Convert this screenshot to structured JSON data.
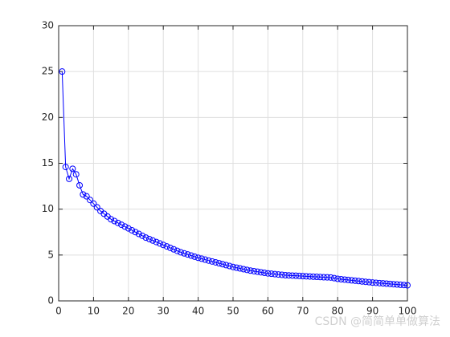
{
  "chart_data": {
    "type": "line",
    "x": [
      1,
      2,
      3,
      4,
      5,
      6,
      7,
      8,
      9,
      10,
      11,
      12,
      13,
      14,
      15,
      16,
      17,
      18,
      19,
      20,
      21,
      22,
      23,
      24,
      25,
      26,
      27,
      28,
      29,
      30,
      31,
      32,
      33,
      34,
      35,
      36,
      37,
      38,
      39,
      40,
      41,
      42,
      43,
      44,
      45,
      46,
      47,
      48,
      49,
      50,
      51,
      52,
      53,
      54,
      55,
      56,
      57,
      58,
      59,
      60,
      61,
      62,
      63,
      64,
      65,
      66,
      67,
      68,
      69,
      70,
      71,
      72,
      73,
      74,
      75,
      76,
      77,
      78,
      79,
      80,
      81,
      82,
      83,
      84,
      85,
      86,
      87,
      88,
      89,
      90,
      91,
      92,
      93,
      94,
      95,
      96,
      97,
      98,
      99,
      100
    ],
    "series": [
      {
        "color": "#0000ff",
        "marker": "circle",
        "values": [
          25,
          14.6,
          13.3,
          14.4,
          13.8,
          12.6,
          11.6,
          11.4,
          11.0,
          10.6,
          10.2,
          9.8,
          9.5,
          9.2,
          8.9,
          8.7,
          8.5,
          8.3,
          8.1,
          7.9,
          7.7,
          7.5,
          7.3,
          7.1,
          6.9,
          6.74,
          6.58,
          6.42,
          6.26,
          6.1,
          5.94,
          5.78,
          5.62,
          5.46,
          5.3,
          5.18,
          5.06,
          4.94,
          4.82,
          4.7,
          4.6,
          4.5,
          4.4,
          4.3,
          4.2,
          4.1,
          4.0,
          3.9,
          3.8,
          3.7,
          3.62,
          3.54,
          3.46,
          3.38,
          3.3,
          3.24,
          3.18,
          3.12,
          3.06,
          3.0,
          2.96,
          2.92,
          2.88,
          2.84,
          2.8,
          2.78,
          2.76,
          2.74,
          2.72,
          2.7,
          2.68,
          2.66,
          2.64,
          2.62,
          2.6,
          2.58,
          2.57,
          2.55,
          2.48,
          2.4,
          2.36,
          2.32,
          2.28,
          2.24,
          2.2,
          2.16,
          2.12,
          2.08,
          2.04,
          2.0,
          1.97,
          1.94,
          1.91,
          1.88,
          1.85,
          1.82,
          1.79,
          1.76,
          1.73,
          1.7
        ]
      }
    ],
    "xlim": [
      0,
      100
    ],
    "xticks": [
      0,
      10,
      20,
      30,
      40,
      50,
      60,
      70,
      80,
      90,
      100
    ],
    "ylim": [
      0,
      30
    ],
    "yticks": [
      0,
      5,
      10,
      15,
      20,
      25,
      30
    ],
    "grid": true,
    "watermark": "CSDN @简简单单做算法"
  }
}
